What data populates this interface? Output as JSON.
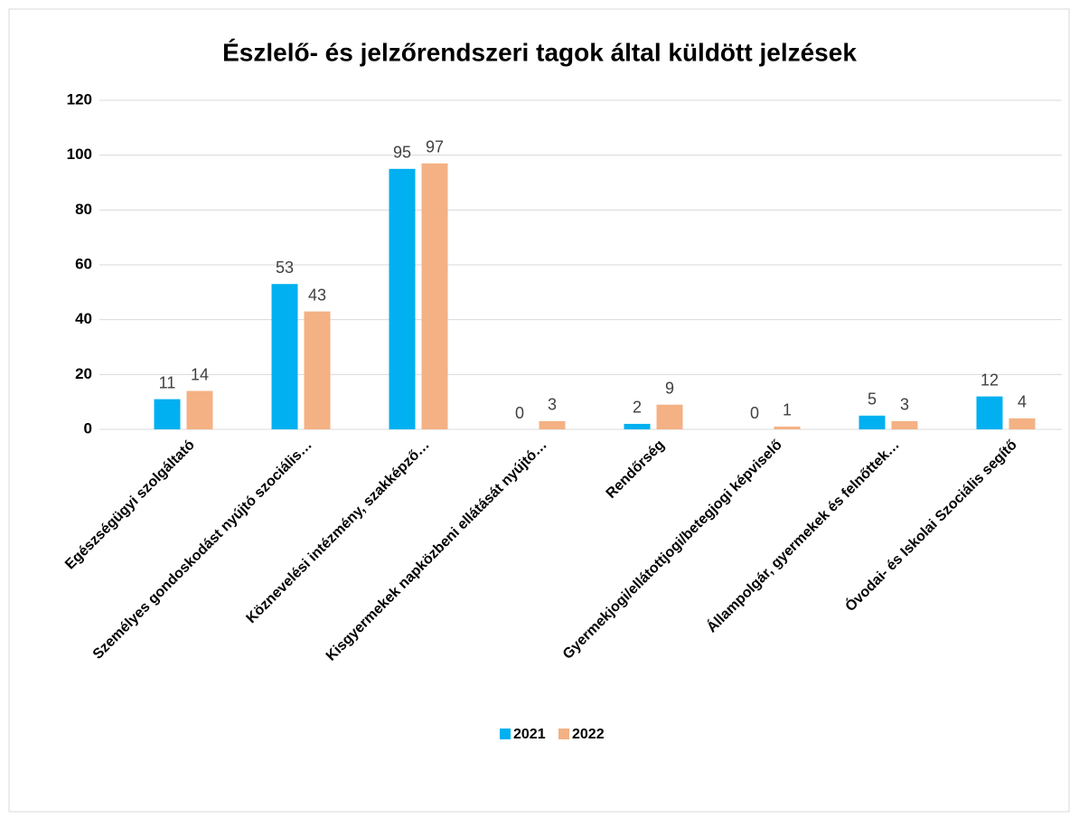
{
  "chart_data": {
    "type": "bar",
    "title": "Észlelő- és jelzőrendszeri tagok által küldött jelzések",
    "categories": [
      "Egészségügyi szolgáltató",
      "Személyes gondoskodást nyújtó szociális…",
      "Köznevelési intézmény, szakképző…",
      "Kisgyermekek napközbeni ellátását nyújtó…",
      "Rendőrség",
      "Gyermekjogi/ellátottjogi/betegjogi képviselő",
      "Állampolgár, gyermekek és felnőttek…",
      "Óvodai- és Iskolai Szociális segítő"
    ],
    "series": [
      {
        "name": "2021",
        "color": "#00b0f0",
        "values": [
          11,
          53,
          95,
          0,
          2,
          0,
          5,
          12
        ]
      },
      {
        "name": "2022",
        "color": "#f4b183",
        "values": [
          14,
          43,
          97,
          3,
          9,
          1,
          3,
          4
        ]
      }
    ],
    "ylim": [
      0,
      120
    ],
    "yticks": [
      0,
      20,
      40,
      60,
      80,
      100,
      120
    ],
    "grid": true,
    "legend": "bottom"
  }
}
